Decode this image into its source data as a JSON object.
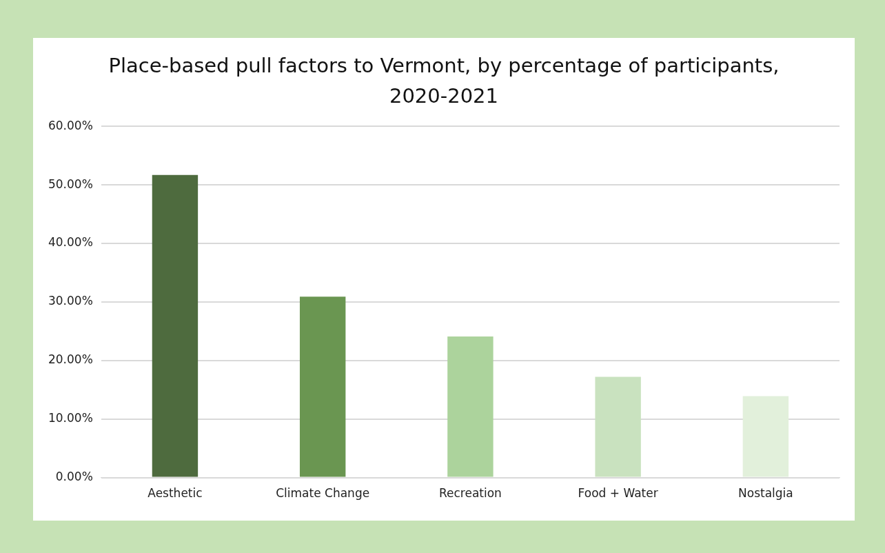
{
  "chart_data": {
    "type": "bar",
    "title": "Place-based pull factors to Vermont, by percentage of participants, 2020-2021",
    "categories": [
      "Aesthetic",
      "Climate Change",
      "Recreation",
      "Food + Water",
      "Nostalgia"
    ],
    "values": [
      51.7,
      30.9,
      24.1,
      17.2,
      13.9
    ],
    "colors": [
      "#4e6b3e",
      "#6a9651",
      "#acd39c",
      "#c9e2bf",
      "#e2f0db"
    ],
    "ylim": [
      0,
      60
    ],
    "yticks": [
      {
        "value": 0,
        "label": "0.00%"
      },
      {
        "value": 10,
        "label": "10.00%"
      },
      {
        "value": 20,
        "label": "20.00%"
      },
      {
        "value": 30,
        "label": "30.00%"
      },
      {
        "value": 40,
        "label": "40.00%"
      },
      {
        "value": 50,
        "label": "50.00%"
      },
      {
        "value": 60,
        "label": "60.00%"
      }
    ],
    "grid": "y",
    "legend": false
  }
}
